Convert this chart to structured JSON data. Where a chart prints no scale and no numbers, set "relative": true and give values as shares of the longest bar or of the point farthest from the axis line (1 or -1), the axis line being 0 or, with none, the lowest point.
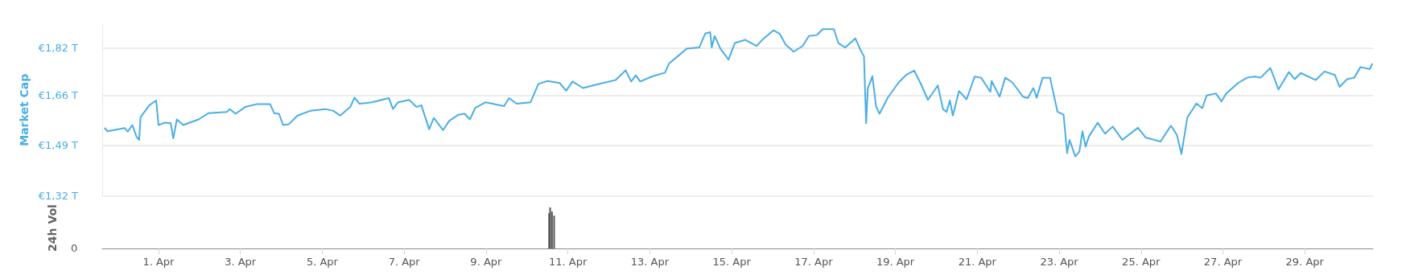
{
  "chart_data": [
    {
      "type": "line",
      "ylabel": "Market Cap",
      "tick_labels": "y",
      "grid": "y",
      "marker": "none",
      "line_style": "solid",
      "xlim": [
        "--03-30T15:00",
        "--04-30T16:00"
      ],
      "ylim": [
        1.32,
        1.9
      ],
      "yticks": [
        {
          "value": 1.32,
          "label": "€1,32 T"
        },
        {
          "value": 1.49,
          "label": "€1,49 T"
        },
        {
          "value": 1.66,
          "label": "€1,66 T"
        },
        {
          "value": 1.82,
          "label": "€1,82 T"
        }
      ],
      "series": [
        {
          "color": "#4aaee6",
          "x": [
            "--03-30T16:20",
            "--03-30T18:10",
            "--03-31T04:10",
            "--03-31T06:00",
            "--03-31T08:40",
            "--03-31T11:10",
            "--03-31T12:40",
            "--03-31T13:30",
            "--03-31T18:40",
            "--03-31T22:40",
            "--04-01T00:00",
            "--04-01T03:40",
            "--04-01T07:10",
            "--04-01T08:40",
            "--04-01T10:45",
            "--04-01T14:30",
            "--04-01T23:30",
            "--04-02T05:10",
            "--04-02T16:00",
            "--04-02T17:50",
            "--04-02T21:10",
            "--04-03T02:50",
            "--04-03T09:50",
            "--04-03T17:25",
            "--04-03T19:50",
            "--04-03T22:40",
            "--04-04T01:00",
            "--04-04T04:30",
            "--04-04T09:30",
            "--04-04T17:00",
            "--04-05T02:00",
            "--04-05T06:30",
            "--04-05T10:30",
            "--04-05T16:25",
            "--04-05T18:55",
            "--04-05T21:50",
            "--04-06T05:05",
            "--04-06T15:05",
            "--04-06T17:25",
            "--04-06T20:25",
            "--04-07T02:55",
            "--04-07T07:15",
            "--04-07T10:05",
            "--04-07T14:40",
            "--04-07T17:25",
            "--04-07T22:50",
            "--04-08T02:25",
            "--04-08T07:50",
            "--04-08T11:30",
            "--04-08T14:35",
            "--04-08T17:40",
            "--04-08T23:50",
            "--04-09T10:35",
            "--04-09T13:30",
            "--04-09T18:00",
            "--04-10T02:10",
            "--04-10T06:40",
            "--04-10T12:05",
            "--04-10T19:10",
            "--04-10T23:00",
            "--04-11T02:40",
            "--04-11T08:50",
            "--04-11T16:10",
            "--04-12T04:00",
            "--04-12T09:50",
            "--04-12T13:05",
            "--04-12T15:50",
            "--04-12T18:20",
            "--04-13T01:50",
            "--04-13T08:55",
            "--04-13T11:20",
            "--04-13T16:20",
            "--04-13T21:40",
            "--04-14T05:00",
            "--04-14T08:30",
            "--04-14T11:25",
            "--04-14T12:20",
            "--04-14T14:00",
            "--04-14T17:30",
            "--04-14T22:10",
            "--04-15T01:50",
            "--04-15T08:05",
            "--04-15T14:30",
            "--04-15T18:55",
            "--04-16T00:30",
            "--04-16T04:05",
            "--04-16T07:40",
            "--04-16T12:20",
            "--04-16T17:35",
            "--04-16T21:20",
            "--04-17T01:55",
            "--04-17T05:25",
            "--04-17T11:55",
            "--04-17T14:35",
            "--04-17T18:35",
            "--04-18T00:30",
            "--04-18T04:00",
            "--04-18T05:35",
            "--04-18T06:50",
            "--04-18T07:50",
            "--04-18T10:30",
            "--04-18T12:40",
            "--04-18T14:40",
            "--04-18T19:35",
            "--04-19T01:55",
            "--04-19T06:25",
            "--04-19T11:00",
            "--04-19T14:40",
            "--04-19T19:05",
            "--04-20T00:50",
            "--04-20T03:55",
            "--04-20T06:00",
            "--04-20T07:55",
            "--04-20T09:40",
            "--04-20T13:15",
            "--04-20T17:45",
            "--04-20T22:30",
            "--04-21T02:15",
            "--04-21T07:40",
            "--04-21T08:25",
            "--04-21T13:05",
            "--04-21T16:25",
            "--04-21T20:35",
            "--04-22T02:45",
            "--04-22T05:35",
            "--04-22T08:55",
            "--04-22T10:50",
            "--04-22T14:20",
            "--04-22T18:40",
            "--04-22T23:00",
            "--04-23T02:35",
            "--04-23T04:40",
            "--04-23T06:05",
            "--04-23T09:25",
            "--04-23T11:50",
            "--04-23T13:40",
            "--04-23T15:30",
            "--04-23T17:25",
            "--04-23T22:35",
            "--04-24T02:55",
            "--04-24T07:25",
            "--04-24T13:00",
            "--04-24T22:10",
            "--04-25T02:40",
            "--04-25T11:25",
            "--04-25T17:30",
            "--04-25T21:05",
            "--04-25T23:40",
            "--04-26T03:10",
            "--04-26T08:30",
            "--04-26T11:55",
            "--04-26T14:30",
            "--04-26T19:50",
            "--04-26T23:10",
            "--04-27T02:00",
            "--04-27T08:55",
            "--04-27T14:10",
            "--04-27T18:35",
            "--04-27T22:05",
            "--04-28T03:50",
            "--04-28T08:35",
            "--04-28T14:40",
            "--04-28T18:05",
            "--04-28T21:40",
            "--04-29T06:25",
            "--04-29T11:35",
            "--04-29T17:40",
            "--04-29T20:25",
            "--04-30T00:50",
            "--04-30T05:00",
            "--04-30T08:40",
            "--04-30T14:00",
            "--04-30T15:40"
          ],
          "values": [
            1.55,
            1.538,
            1.549,
            1.537,
            1.559,
            1.519,
            1.509,
            1.586,
            1.626,
            1.642,
            1.559,
            1.567,
            1.565,
            1.514,
            1.578,
            1.559,
            1.578,
            1.599,
            1.603,
            1.613,
            1.597,
            1.62,
            1.63,
            1.63,
            1.599,
            1.597,
            1.559,
            1.562,
            1.591,
            1.607,
            1.613,
            1.607,
            1.591,
            1.62,
            1.652,
            1.631,
            1.636,
            1.65,
            1.613,
            1.636,
            1.644,
            1.62,
            1.626,
            1.545,
            1.583,
            1.542,
            1.573,
            1.594,
            1.597,
            1.578,
            1.617,
            1.636,
            1.623,
            1.65,
            1.631,
            1.636,
            1.698,
            1.708,
            1.701,
            1.675,
            1.706,
            1.684,
            1.695,
            1.711,
            1.744,
            1.706,
            1.727,
            1.706,
            1.724,
            1.736,
            1.767,
            1.791,
            1.817,
            1.821,
            1.868,
            1.873,
            1.821,
            1.86,
            1.816,
            1.78,
            1.836,
            1.847,
            1.826,
            1.852,
            1.879,
            1.868,
            1.831,
            1.807,
            1.826,
            1.86,
            1.863,
            1.883,
            1.883,
            1.836,
            1.821,
            1.852,
            1.807,
            1.791,
            1.565,
            1.683,
            1.724,
            1.622,
            1.597,
            1.652,
            1.703,
            1.729,
            1.743,
            1.701,
            1.644,
            1.693,
            1.613,
            1.603,
            1.642,
            1.591,
            1.674,
            1.646,
            1.723,
            1.719,
            1.671,
            1.708,
            1.655,
            1.719,
            1.703,
            1.655,
            1.65,
            1.684,
            1.651,
            1.719,
            1.719,
            1.604,
            1.594,
            1.464,
            1.509,
            1.453,
            1.469,
            1.538,
            1.486,
            1.52,
            1.567,
            1.53,
            1.554,
            1.509,
            1.55,
            1.517,
            1.503,
            1.557,
            1.525,
            1.461,
            1.585,
            1.632,
            1.616,
            1.659,
            1.666,
            1.639,
            1.666,
            1.701,
            1.719,
            1.723,
            1.719,
            1.752,
            1.679,
            1.738,
            1.714,
            1.735,
            1.711,
            1.74,
            1.728,
            1.688,
            1.714,
            1.719,
            1.755,
            1.748,
            1.767
          ]
        }
      ]
    },
    {
      "type": "bar",
      "ylabel": "24h Vol",
      "relative": true,
      "annotations": [
        "0"
      ],
      "xlim": [
        "--03-30T15:00",
        "--04-30T16:00"
      ],
      "xticks": [
        {
          "value": "--04-01",
          "label": "1. Apr"
        },
        {
          "value": "--04-03",
          "label": "3. Apr"
        },
        {
          "value": "--04-05",
          "label": "5. Apr"
        },
        {
          "value": "--04-07",
          "label": "7. Apr"
        },
        {
          "value": "--04-09",
          "label": "9. Apr"
        },
        {
          "value": "--04-11",
          "label": "11. Apr"
        },
        {
          "value": "--04-13",
          "label": "13. Apr"
        },
        {
          "value": "--04-15",
          "label": "15. Apr"
        },
        {
          "value": "--04-17",
          "label": "17. Apr"
        },
        {
          "value": "--04-19",
          "label": "19. Apr"
        },
        {
          "value": "--04-21",
          "label": "21. Apr"
        },
        {
          "value": "--04-23",
          "label": "23. Apr"
        },
        {
          "value": "--04-25",
          "label": "25. Apr"
        },
        {
          "value": "--04-27",
          "label": "27. Apr"
        },
        {
          "value": "--04-29",
          "label": "29. Apr"
        }
      ],
      "series": [
        {
          "color": "#555555",
          "x": [
            "--04-10T13:00",
            "--04-10T13:35",
            "--04-10T14:40",
            "--04-10T15:55"
          ],
          "values": [
            0.86,
            1,
            0.9,
            0.8
          ]
        }
      ]
    }
  ]
}
